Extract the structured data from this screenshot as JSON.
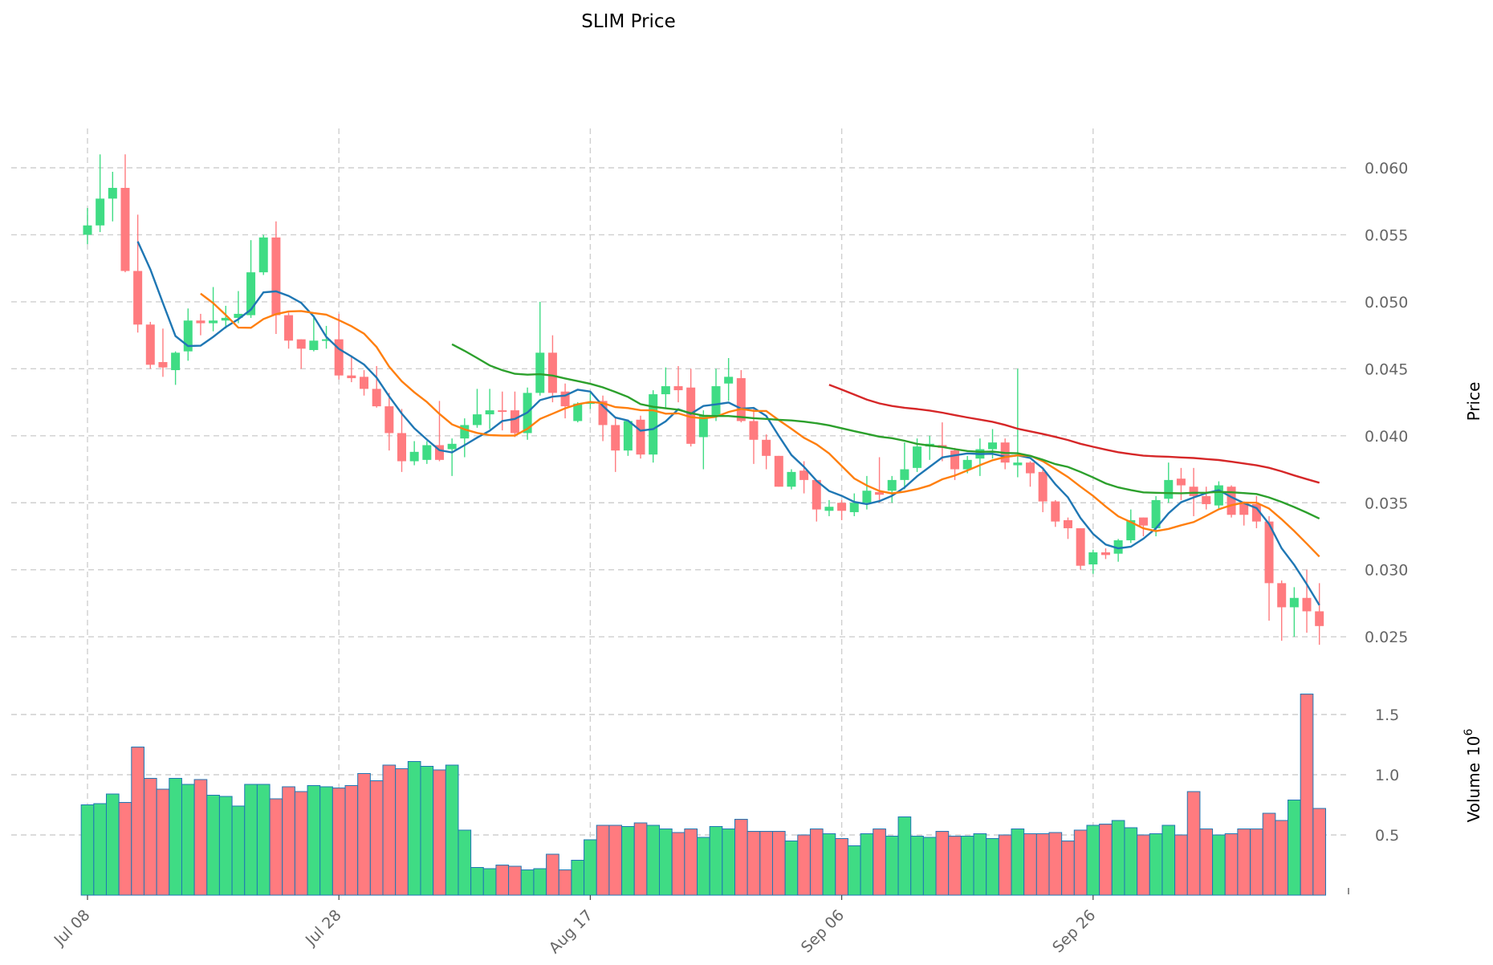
{
  "chart_data": {
    "type": "candlestick",
    "title": "SLIM Price",
    "ylabel_price": "Price",
    "ylabel_volume": "Volume",
    "volume_multiplier_label": "10",
    "volume_multiplier_exp": "6",
    "start_date": "Jul 08",
    "x_tick_labels": [
      "Jul 08",
      "Jul 28",
      "Aug 17",
      "Sep 06",
      "Sep 26"
    ],
    "x_tick_indices": [
      0,
      20,
      40,
      60,
      80
    ],
    "price_ticks": [
      "0.025",
      "0.030",
      "0.035",
      "0.040",
      "0.045",
      "0.050",
      "0.055",
      "0.060"
    ],
    "volume_ticks": [
      "0.5",
      "1.0",
      "1.5"
    ],
    "price_ylim": [
      0.0238,
      0.0628
    ],
    "volume_ylim": [
      0,
      1.72
    ],
    "colors": {
      "up": "#3fdc84",
      "down": "#ff7b7f",
      "volume_edge": "#1f77b4"
    },
    "moving_averages": [
      {
        "window": 5,
        "color": "#1f77b4"
      },
      {
        "window": 10,
        "color": "#ff7f0e"
      },
      {
        "window": 30,
        "color": "#2ca02c"
      },
      {
        "window": 60,
        "color": "#d62728"
      }
    ],
    "ohlc": [
      [
        0.055,
        0.057,
        0.0543,
        0.0557
      ],
      [
        0.0557,
        0.061,
        0.0552,
        0.0577
      ],
      [
        0.0577,
        0.0597,
        0.056,
        0.0585
      ],
      [
        0.0585,
        0.061,
        0.0522,
        0.0523
      ],
      [
        0.0523,
        0.0565,
        0.0477,
        0.0483
      ],
      [
        0.0483,
        0.0485,
        0.045,
        0.0453
      ],
      [
        0.0455,
        0.048,
        0.0444,
        0.0451
      ],
      [
        0.0449,
        0.0463,
        0.0438,
        0.0462
      ],
      [
        0.0463,
        0.0495,
        0.0456,
        0.0486
      ],
      [
        0.0486,
        0.0491,
        0.0475,
        0.0484
      ],
      [
        0.0484,
        0.0511,
        0.0478,
        0.0486
      ],
      [
        0.0486,
        0.0497,
        0.048,
        0.0488
      ],
      [
        0.0488,
        0.0508,
        0.0484,
        0.0491
      ],
      [
        0.049,
        0.0546,
        0.0488,
        0.0522
      ],
      [
        0.0522,
        0.055,
        0.052,
        0.0548
      ],
      [
        0.0548,
        0.056,
        0.0476,
        0.049
      ],
      [
        0.049,
        0.0492,
        0.0465,
        0.0471
      ],
      [
        0.0472,
        0.0472,
        0.045,
        0.0465
      ],
      [
        0.0464,
        0.049,
        0.0463,
        0.0471
      ],
      [
        0.0471,
        0.0482,
        0.0465,
        0.0472
      ],
      [
        0.0472,
        0.0491,
        0.0442,
        0.0445
      ],
      [
        0.0445,
        0.046,
        0.044,
        0.0443
      ],
      [
        0.0444,
        0.0449,
        0.043,
        0.0435
      ],
      [
        0.0435,
        0.0452,
        0.0421,
        0.0422
      ],
      [
        0.0422,
        0.0432,
        0.0389,
        0.0402
      ],
      [
        0.0402,
        0.042,
        0.0373,
        0.0381
      ],
      [
        0.0381,
        0.0396,
        0.0378,
        0.0388
      ],
      [
        0.0382,
        0.0396,
        0.0379,
        0.0393
      ],
      [
        0.0393,
        0.0426,
        0.0381,
        0.0382
      ],
      [
        0.039,
        0.0398,
        0.037,
        0.0394
      ],
      [
        0.0398,
        0.0413,
        0.0384,
        0.0408
      ],
      [
        0.0408,
        0.0435,
        0.0406,
        0.0416
      ],
      [
        0.0416,
        0.0435,
        0.0405,
        0.0419
      ],
      [
        0.0419,
        0.0433,
        0.0404,
        0.0418
      ],
      [
        0.0419,
        0.0433,
        0.0399,
        0.0402
      ],
      [
        0.0402,
        0.0436,
        0.0397,
        0.0432
      ],
      [
        0.0432,
        0.05,
        0.043,
        0.0462
      ],
      [
        0.0462,
        0.0475,
        0.0425,
        0.0432
      ],
      [
        0.0433,
        0.0439,
        0.0413,
        0.0422
      ],
      [
        0.0411,
        0.0425,
        0.041,
        0.0424
      ],
      [
        0.0424,
        0.0432,
        0.042,
        0.0425
      ],
      [
        0.0426,
        0.043,
        0.0396,
        0.0408
      ],
      [
        0.0408,
        0.0413,
        0.0373,
        0.0389
      ],
      [
        0.0389,
        0.0412,
        0.0385,
        0.0411
      ],
      [
        0.0412,
        0.0415,
        0.0383,
        0.0386
      ],
      [
        0.0386,
        0.0434,
        0.038,
        0.0431
      ],
      [
        0.0431,
        0.0451,
        0.042,
        0.0437
      ],
      [
        0.0437,
        0.0452,
        0.0425,
        0.0434
      ],
      [
        0.0436,
        0.045,
        0.0392,
        0.0394
      ],
      [
        0.0399,
        0.0419,
        0.0375,
        0.0415
      ],
      [
        0.0415,
        0.045,
        0.0411,
        0.0437
      ],
      [
        0.0439,
        0.0458,
        0.0426,
        0.0444
      ],
      [
        0.0443,
        0.0449,
        0.041,
        0.0411
      ],
      [
        0.0411,
        0.042,
        0.0379,
        0.0397
      ],
      [
        0.0397,
        0.0401,
        0.0375,
        0.0385
      ],
      [
        0.0385,
        0.0385,
        0.0362,
        0.0362
      ],
      [
        0.0362,
        0.0375,
        0.036,
        0.0373
      ],
      [
        0.0374,
        0.0381,
        0.0357,
        0.0367
      ],
      [
        0.0367,
        0.0367,
        0.0336,
        0.0345
      ],
      [
        0.0344,
        0.0352,
        0.034,
        0.0347
      ],
      [
        0.035,
        0.0352,
        0.0337,
        0.0344
      ],
      [
        0.0343,
        0.0357,
        0.034,
        0.035
      ],
      [
        0.035,
        0.037,
        0.0345,
        0.0359
      ],
      [
        0.0358,
        0.0384,
        0.035,
        0.0356
      ],
      [
        0.0359,
        0.037,
        0.035,
        0.0367
      ],
      [
        0.0367,
        0.0395,
        0.036,
        0.0375
      ],
      [
        0.0376,
        0.0398,
        0.0373,
        0.0392
      ],
      [
        0.0392,
        0.04,
        0.0382,
        0.0394
      ],
      [
        0.0393,
        0.041,
        0.0381,
        0.0391
      ],
      [
        0.0389,
        0.0391,
        0.0367,
        0.0375
      ],
      [
        0.0375,
        0.0385,
        0.0372,
        0.0382
      ],
      [
        0.0383,
        0.0398,
        0.037,
        0.039
      ],
      [
        0.039,
        0.0405,
        0.0383,
        0.0395
      ],
      [
        0.0395,
        0.0398,
        0.0375,
        0.038
      ],
      [
        0.0378,
        0.045,
        0.0369,
        0.038
      ],
      [
        0.038,
        0.0381,
        0.0362,
        0.0372
      ],
      [
        0.0373,
        0.0375,
        0.0343,
        0.0351
      ],
      [
        0.0351,
        0.0352,
        0.0332,
        0.0336
      ],
      [
        0.0337,
        0.0339,
        0.0323,
        0.0331
      ],
      [
        0.0331,
        0.0331,
        0.03,
        0.0303
      ],
      [
        0.0304,
        0.0315,
        0.0297,
        0.0313
      ],
      [
        0.0313,
        0.0316,
        0.0308,
        0.0311
      ],
      [
        0.0312,
        0.0323,
        0.0306,
        0.0322
      ],
      [
        0.0322,
        0.0345,
        0.032,
        0.0337
      ],
      [
        0.0339,
        0.0339,
        0.0325,
        0.0333
      ],
      [
        0.0331,
        0.0355,
        0.0325,
        0.0352
      ],
      [
        0.0353,
        0.038,
        0.035,
        0.0367
      ],
      [
        0.0368,
        0.0376,
        0.0352,
        0.0363
      ],
      [
        0.0362,
        0.0376,
        0.034,
        0.0355
      ],
      [
        0.0355,
        0.0362,
        0.0345,
        0.0349
      ],
      [
        0.0348,
        0.0366,
        0.0345,
        0.0363
      ],
      [
        0.0362,
        0.0363,
        0.0339,
        0.0341
      ],
      [
        0.035,
        0.0351,
        0.0333,
        0.0341
      ],
      [
        0.0349,
        0.0355,
        0.0331,
        0.0336
      ],
      [
        0.0336,
        0.034,
        0.0262,
        0.029
      ],
      [
        0.029,
        0.0292,
        0.0247,
        0.0272
      ],
      [
        0.0272,
        0.0287,
        0.025,
        0.0279
      ],
      [
        0.0279,
        0.03,
        0.0253,
        0.0269
      ],
      [
        0.0269,
        0.029,
        0.0244,
        0.0258
      ]
    ],
    "volume_millions": [
      0.75,
      0.76,
      0.84,
      0.77,
      1.23,
      0.97,
      0.88,
      0.97,
      0.92,
      0.96,
      0.83,
      0.82,
      0.74,
      0.92,
      0.92,
      0.8,
      0.9,
      0.86,
      0.91,
      0.9,
      0.89,
      0.91,
      1.01,
      0.95,
      1.08,
      1.05,
      1.11,
      1.07,
      1.04,
      1.08,
      0.54,
      0.23,
      0.22,
      0.25,
      0.24,
      0.21,
      0.22,
      0.34,
      0.21,
      0.29,
      0.46,
      0.58,
      0.58,
      0.57,
      0.6,
      0.58,
      0.55,
      0.52,
      0.55,
      0.48,
      0.57,
      0.55,
      0.63,
      0.53,
      0.53,
      0.53,
      0.45,
      0.5,
      0.55,
      0.51,
      0.47,
      0.41,
      0.51,
      0.55,
      0.49,
      0.65,
      0.49,
      0.48,
      0.53,
      0.49,
      0.49,
      0.51,
      0.47,
      0.5,
      0.55,
      0.51,
      0.51,
      0.52,
      0.45,
      0.54,
      0.58,
      0.59,
      0.62,
      0.56,
      0.5,
      0.51,
      0.58,
      0.5,
      0.86,
      0.55,
      0.5,
      0.51,
      0.55,
      0.55,
      0.68,
      0.62,
      0.79,
      1.67,
      0.72
    ]
  }
}
